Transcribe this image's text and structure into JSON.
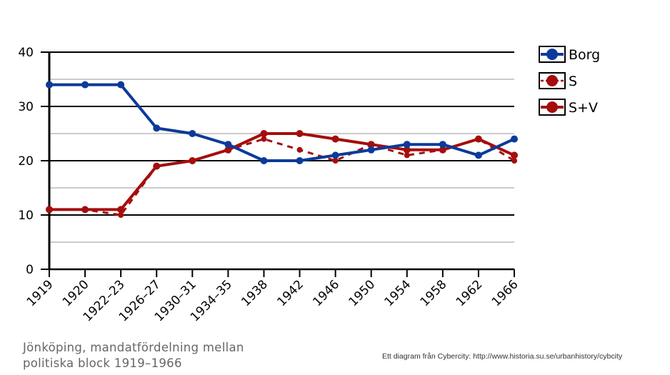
{
  "caption": {
    "line1": "Jönköping, mandatfördelning  mellan",
    "line2": "politiska block 1919–1966"
  },
  "credit": "Ett diagram från Cybercity: http://www.historia.su.se/urbanhistory/cybcity",
  "chart_data": {
    "type": "line",
    "title": "",
    "xlabel": "",
    "ylabel": "",
    "ylim": [
      0,
      40
    ],
    "yticks": [
      0,
      10,
      20,
      30,
      40
    ],
    "grid": true,
    "legend_position": "right",
    "categories": [
      "1919",
      "1920",
      "1922–23",
      "1926–27",
      "1930–31",
      "1934–35",
      "1938",
      "1942",
      "1946",
      "1950",
      "1954",
      "1958",
      "1962",
      "1966"
    ],
    "series": [
      {
        "name": "Borg",
        "color": "#0b3a9a",
        "style": "solid",
        "values": [
          34,
          34,
          34,
          26,
          25,
          23,
          20,
          20,
          21,
          22,
          23,
          23,
          21,
          24
        ]
      },
      {
        "name": "S",
        "color": "#a50d0d",
        "style": "dashed",
        "values": [
          11,
          11,
          10,
          19,
          20,
          22,
          24,
          22,
          20,
          23,
          21,
          22,
          24,
          20
        ]
      },
      {
        "name": "S+V",
        "color": "#a50d0d",
        "style": "solid",
        "values": [
          11,
          11,
          11,
          19,
          20,
          22,
          25,
          25,
          24,
          23,
          22,
          22,
          24,
          21
        ]
      }
    ]
  }
}
